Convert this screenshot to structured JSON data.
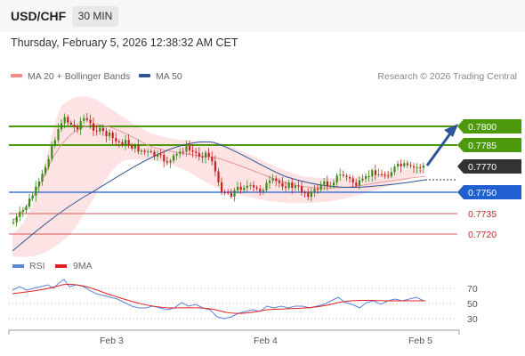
{
  "header": {
    "symbol": "USD/CHF",
    "timeframe": "30 MIN"
  },
  "timestamp": "Thursday, February 5, 2026 12:38:32 AM CET",
  "legend": {
    "items": [
      {
        "label": "MA 20 + Bollinger Bands",
        "color": "#f28a8a"
      },
      {
        "label": "MA 50",
        "color": "#2e5597"
      }
    ],
    "credit": "Research © 2026 Trading Central"
  },
  "rsi_legend": {
    "items": [
      {
        "label": "RSI",
        "color": "#5b85d8"
      },
      {
        "label": "9MA",
        "color": "#e02020"
      }
    ]
  },
  "price_levels": [
    {
      "value": "0.7800",
      "kind": "resistance",
      "color": "#4c9a0c"
    },
    {
      "value": "0.7785",
      "kind": "resistance",
      "color": "#4c9a0c"
    },
    {
      "value": "0.7770",
      "kind": "current",
      "color": "#333333"
    },
    {
      "value": "0.7750",
      "kind": "pivot",
      "color": "#1f5fcf"
    },
    {
      "value": "0.7735",
      "kind": "support",
      "color": "#cc2a2a"
    },
    {
      "value": "0.7720",
      "kind": "support",
      "color": "#cc2a2a"
    }
  ],
  "rsi_levels": [
    "70",
    "50",
    "30"
  ],
  "x_axis": [
    "Feb 3",
    "Feb 4",
    "Feb 5"
  ],
  "colors": {
    "bullish": "#3a8a18",
    "bearish": "#c42222",
    "band_fill": "#fde3e3",
    "arrow": "#2e5597"
  }
}
